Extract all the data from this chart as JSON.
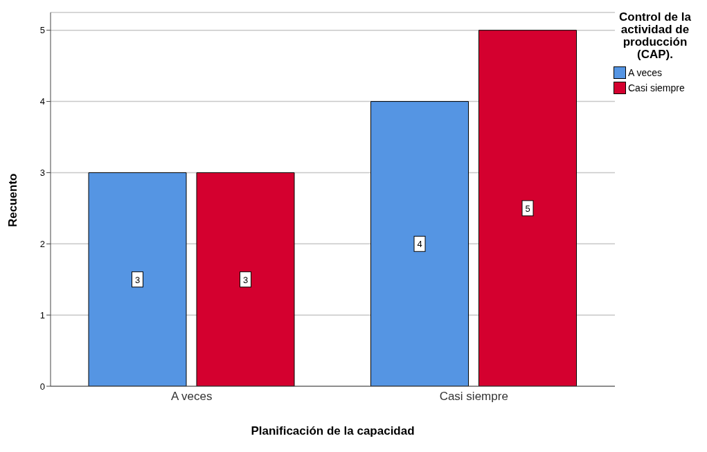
{
  "chart_data": {
    "type": "bar",
    "xlabel": "Planificación de la capacidad",
    "ylabel": "Recuento",
    "legend_title": "Control de la actividad de producción (CAP).",
    "categories": [
      "A veces",
      "Casi siempre"
    ],
    "series": [
      {
        "name": "A veces",
        "color": "#5595e3",
        "values": [
          3,
          4
        ]
      },
      {
        "name": "Casi siempre",
        "color": "#d4002f",
        "values": [
          3,
          5
        ]
      }
    ],
    "ylim": [
      0,
      5.25
    ],
    "yticks": [
      0,
      1,
      2,
      3,
      4,
      5
    ],
    "grid": "y",
    "legend": "top right",
    "data_labels": true
  }
}
